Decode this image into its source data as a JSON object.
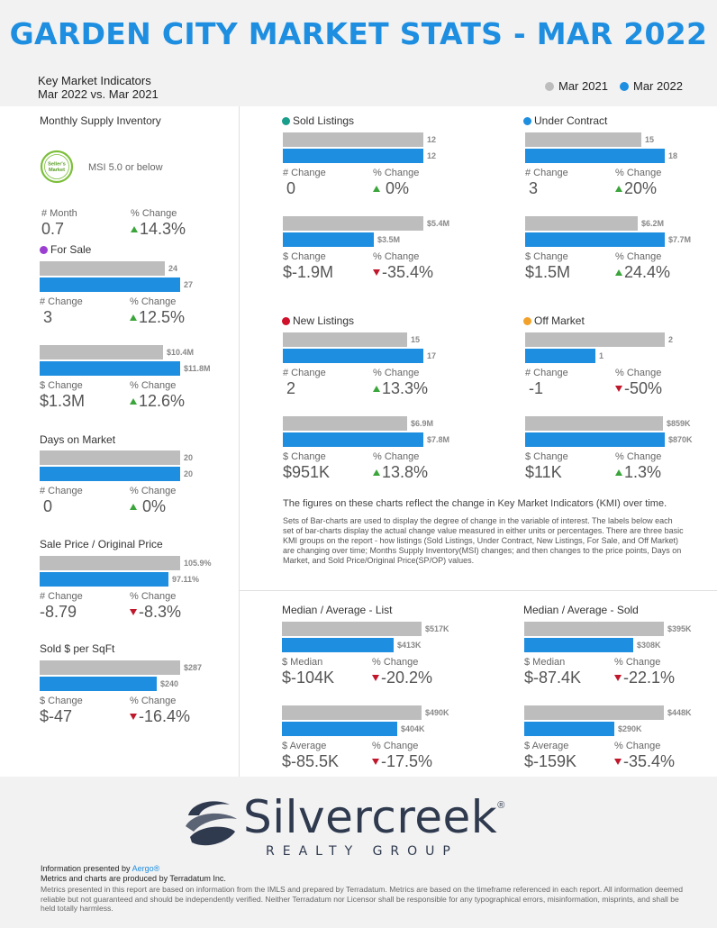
{
  "header": {
    "title": "GARDEN CITY MARKET STATS - MAR 2022",
    "subtitle_line1": "Key Market Indicators",
    "subtitle_line2": "Mar 2022 vs. Mar 2021",
    "legend": [
      {
        "label": "Mar 2021",
        "color": "#bdbdbd"
      },
      {
        "label": "Mar 2022",
        "color": "#1e8ee0"
      }
    ]
  },
  "colors": {
    "gray": "#bdbdbd",
    "blue": "#1e8ee0",
    "up": "#3aa53a",
    "down": "#c0172c"
  },
  "msi": {
    "title": "Monthly Supply Inventory",
    "badge": "Seller's Market",
    "note": "MSI 5.0 or below",
    "change_label": "# Month",
    "change_value": "0.7",
    "pct_label": "% Change",
    "pct_value": "14.3%"
  },
  "for_sale": {
    "title": "For Sale",
    "dot": "#9b3fd1",
    "count": {
      "gray_label": "24",
      "blue_label": "27",
      "gray": 24,
      "blue": 27,
      "max": 27,
      "change_label": "# Change",
      "change_value": "3",
      "pct_label": "% Change",
      "pct_value": "12.5%"
    },
    "volume": {
      "gray_label": "$10.4M",
      "blue_label": "$11.8M",
      "gray": 10.4,
      "blue": 11.8,
      "max": 11.8,
      "change_label": "$ Change",
      "change_value": "$1.3M",
      "pct_label": "% Change",
      "pct_value": "12.6%"
    }
  },
  "dom": {
    "title": "Days on Market",
    "gray_label": "20",
    "blue_label": "20",
    "gray": 20,
    "blue": 20,
    "max": 20,
    "change_label": "# Change",
    "change_value": "0",
    "pct_label": "% Change",
    "pct_value": "0%"
  },
  "sp_op": {
    "title": "Sale Price / Original Price",
    "gray_label": "105.9%",
    "blue_label": "97.11%",
    "gray": 105.9,
    "blue": 97.11,
    "max": 105.9,
    "change_label": "# Change",
    "change_value": "-8.79",
    "pct_label": "% Change",
    "pct_value": "-8.3%"
  },
  "sqft": {
    "title": "Sold $ per SqFt",
    "gray_label": "$287",
    "blue_label": "$240",
    "gray": 287,
    "blue": 240,
    "max": 287,
    "change_label": "$ Change",
    "change_value": "$-47",
    "pct_label": "% Change",
    "pct_value": "-16.4%"
  },
  "sold": {
    "title": "Sold Listings",
    "dot": "#1a9e8c",
    "count": {
      "gray_label": "12",
      "blue_label": "12",
      "gray": 12,
      "blue": 12,
      "max": 12,
      "change_label": "# Change",
      "change_value": "0",
      "pct_label": "% Change",
      "pct_value": "0%"
    },
    "volume": {
      "gray_label": "$5.4M",
      "blue_label": "$3.5M",
      "gray": 5.4,
      "blue": 3.5,
      "max": 5.4,
      "change_label": "$ Change",
      "change_value": "$-1.9M",
      "pct_label": "% Change",
      "pct_value": "-35.4%"
    }
  },
  "under_contract": {
    "title": "Under Contract",
    "dot": "#1e8ee0",
    "count": {
      "gray_label": "15",
      "blue_label": "18",
      "gray": 15,
      "blue": 18,
      "max": 18,
      "change_label": "# Change",
      "change_value": "3",
      "pct_label": "% Change",
      "pct_value": "20%"
    },
    "volume": {
      "gray_label": "$6.2M",
      "blue_label": "$7.7M",
      "gray": 6.2,
      "blue": 7.7,
      "max": 7.7,
      "change_label": "$ Change",
      "change_value": "$1.5M",
      "pct_label": "% Change",
      "pct_value": "24.4%"
    }
  },
  "new_listings": {
    "title": "New Listings",
    "dot": "#d0112b",
    "count": {
      "gray_label": "15",
      "blue_label": "17",
      "gray": 15,
      "blue": 17,
      "max": 17,
      "change_label": "# Change",
      "change_value": "2",
      "pct_label": "% Change",
      "pct_value": "13.3%"
    },
    "volume": {
      "gray_label": "$6.9M",
      "blue_label": "$7.8M",
      "gray": 6.9,
      "blue": 7.8,
      "max": 7.8,
      "change_label": "$ Change",
      "change_value": "$951K",
      "pct_label": "% Change",
      "pct_value": "13.8%"
    }
  },
  "off_market": {
    "title": "Off Market",
    "dot": "#f2a22a",
    "count": {
      "gray_label": "2",
      "blue_label": "1",
      "gray": 2,
      "blue": 1,
      "max": 2,
      "change_label": "# Change",
      "change_value": "-1",
      "pct_label": "% Change",
      "pct_value": "-50%"
    },
    "volume": {
      "gray_label": "$859K",
      "blue_label": "$870K",
      "gray": 859,
      "blue": 870,
      "max": 870,
      "change_label": "$ Change",
      "change_value": "$11K",
      "pct_label": "% Change",
      "pct_value": "1.3%"
    }
  },
  "notes": {
    "headline": "The figures on these charts reflect the change in Key Market Indicators (KMI) over time.",
    "body": "Sets of Bar-charts are used to display the degree of change in the variable of interest. The labels below each set of bar-charts display the actual change value measured in either units or percentages. There are three basic KMI groups on the report - how listings (Sold Listings, Under Contract, New Listings, For Sale, and Off Market) are changing over time; Months Supply Inventory(MSI) changes; and then changes to the price points, Days on Market, and Sold Price/Original Price(SP/OP) values."
  },
  "list_prices": {
    "title": "Median / Average - List",
    "median": {
      "gray_label": "$517K",
      "blue_label": "$413K",
      "gray": 517,
      "blue": 413,
      "max": 517,
      "change_label": "$ Median",
      "change_value": "$-104K",
      "pct_label": "% Change",
      "pct_value": "-20.2%"
    },
    "average": {
      "gray_label": "$490K",
      "blue_label": "$404K",
      "gray": 490,
      "blue": 404,
      "max": 490,
      "change_label": "$ Average",
      "change_value": "$-85.5K",
      "pct_label": "% Change",
      "pct_value": "-17.5%"
    }
  },
  "sold_prices": {
    "title": "Median / Average - Sold",
    "median": {
      "gray_label": "$395K",
      "blue_label": "$308K",
      "gray": 395,
      "blue": 308,
      "max": 395,
      "change_label": "$ Median",
      "change_value": "$-87.4K",
      "pct_label": "% Change",
      "pct_value": "-22.1%"
    },
    "average": {
      "gray_label": "$448K",
      "blue_label": "$290K",
      "gray": 448,
      "blue": 290,
      "max": 448,
      "change_label": "$ Average",
      "change_value": "$-159K",
      "pct_label": "% Change",
      "pct_value": "-35.4%"
    }
  },
  "footer": {
    "brand": "Silvercreek",
    "brand_reg": "®",
    "brand_sub": "REALTY GROUP",
    "presented_prefix": "Information presented by",
    "presented_by": "Aergo®",
    "produced": "Metrics and charts are produced by Terradatum Inc.",
    "disclaimer": "Metrics presented in this report are based on information from the IMLS and prepared by Terradatum. Metrics are based on the timeframe referenced in each report. All information deemed reliable but not guaranteed and should be independently verified. Neither Terradatum nor Licensor shall be responsible for any typographical errors, misinformation, misprints, and shall be held totally harmless."
  }
}
